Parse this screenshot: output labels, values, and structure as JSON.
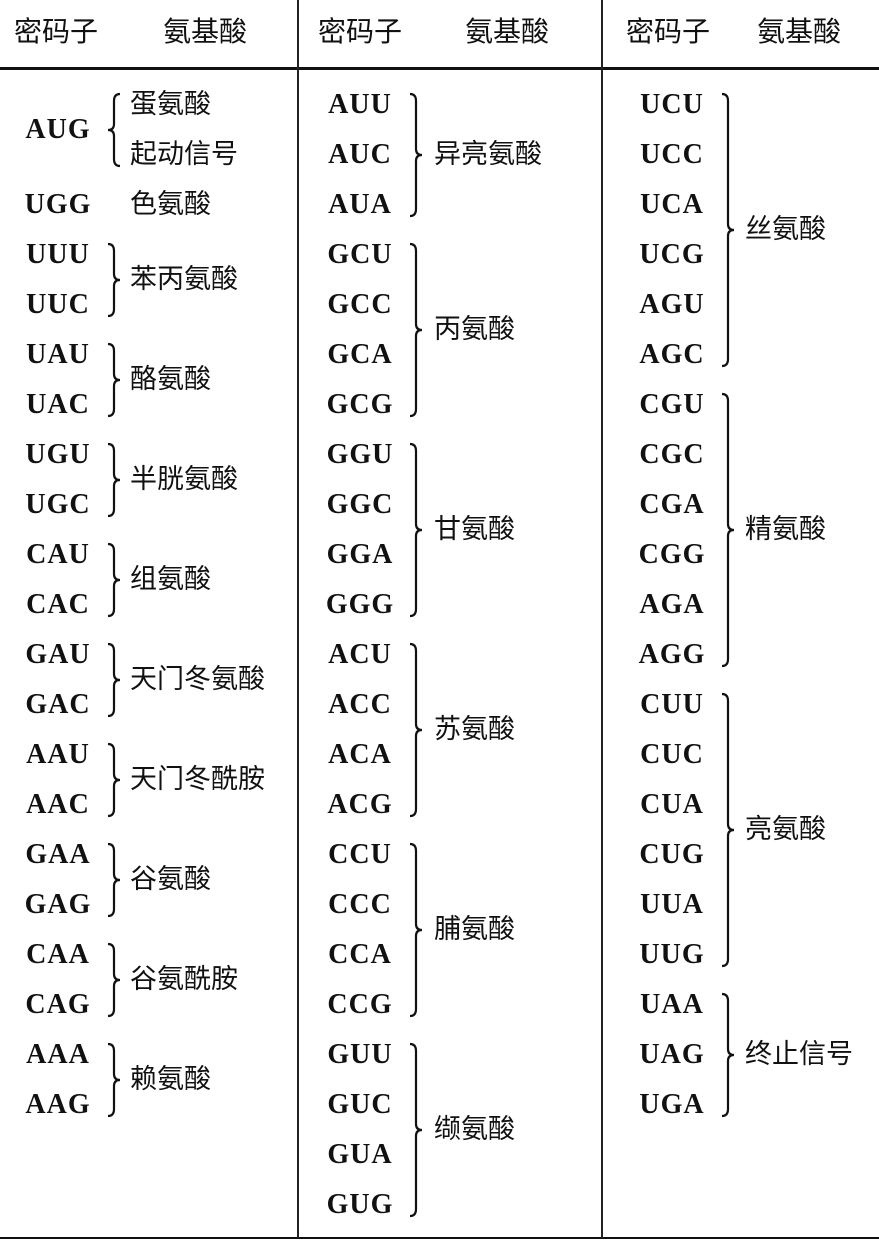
{
  "headers": [
    {
      "codon": "密码子",
      "amino_acid": "氨基酸"
    },
    {
      "codon": "密码子",
      "amino_acid": "氨基酸"
    },
    {
      "codon": "密码子",
      "amino_acid": "氨基酸"
    }
  ],
  "columns": [
    [
      {
        "codons": [
          "AUG"
        ],
        "labels": [
          "蛋氨酸",
          "起动信号"
        ]
      },
      {
        "codons": [
          "UGG"
        ],
        "labels": [
          "色氨酸"
        ]
      },
      {
        "codons": [
          "UUU",
          "UUC"
        ],
        "labels": [
          "苯丙氨酸"
        ]
      },
      {
        "codons": [
          "UAU",
          "UAC"
        ],
        "labels": [
          "酪氨酸"
        ]
      },
      {
        "codons": [
          "UGU",
          "UGC"
        ],
        "labels": [
          "半胱氨酸"
        ]
      },
      {
        "codons": [
          "CAU",
          "CAC"
        ],
        "labels": [
          "组氨酸"
        ]
      },
      {
        "codons": [
          "GAU",
          "GAC"
        ],
        "labels": [
          "天门冬氨酸"
        ]
      },
      {
        "codons": [
          "AAU",
          "AAC"
        ],
        "labels": [
          "天门冬酰胺"
        ]
      },
      {
        "codons": [
          "GAA",
          "GAG"
        ],
        "labels": [
          "谷氨酸"
        ]
      },
      {
        "codons": [
          "CAA",
          "CAG"
        ],
        "labels": [
          "谷氨酰胺"
        ]
      },
      {
        "codons": [
          "AAA",
          "AAG"
        ],
        "labels": [
          "赖氨酸"
        ]
      }
    ],
    [
      {
        "codons": [
          "AUU",
          "AUC",
          "AUA"
        ],
        "labels": [
          "异亮氨酸"
        ]
      },
      {
        "codons": [
          "GCU",
          "GCC",
          "GCA",
          "GCG"
        ],
        "labels": [
          "丙氨酸"
        ]
      },
      {
        "codons": [
          "GGU",
          "GGC",
          "GGA",
          "GGG"
        ],
        "labels": [
          "甘氨酸"
        ]
      },
      {
        "codons": [
          "ACU",
          "ACC",
          "ACA",
          "ACG"
        ],
        "labels": [
          "苏氨酸"
        ]
      },
      {
        "codons": [
          "CCU",
          "CCC",
          "CCA",
          "CCG"
        ],
        "labels": [
          "脯氨酸"
        ]
      },
      {
        "codons": [
          "GUU",
          "GUC",
          "GUA",
          "GUG"
        ],
        "labels": [
          "缬氨酸"
        ]
      }
    ],
    [
      {
        "codons": [
          "UCU",
          "UCC",
          "UCA",
          "UCG",
          "AGU",
          "AGC"
        ],
        "labels": [
          "丝氨酸"
        ]
      },
      {
        "codons": [
          "CGU",
          "CGC",
          "CGA",
          "CGG",
          "AGA",
          "AGG"
        ],
        "labels": [
          "精氨酸"
        ]
      },
      {
        "codons": [
          "CUU",
          "CUC",
          "CUA",
          "CUG",
          "UUA",
          "UUG"
        ],
        "labels": [
          "亮氨酸"
        ]
      },
      {
        "codons": [
          "UAA",
          "UAG",
          "UGA"
        ],
        "labels": [
          "终止信号"
        ]
      }
    ]
  ]
}
